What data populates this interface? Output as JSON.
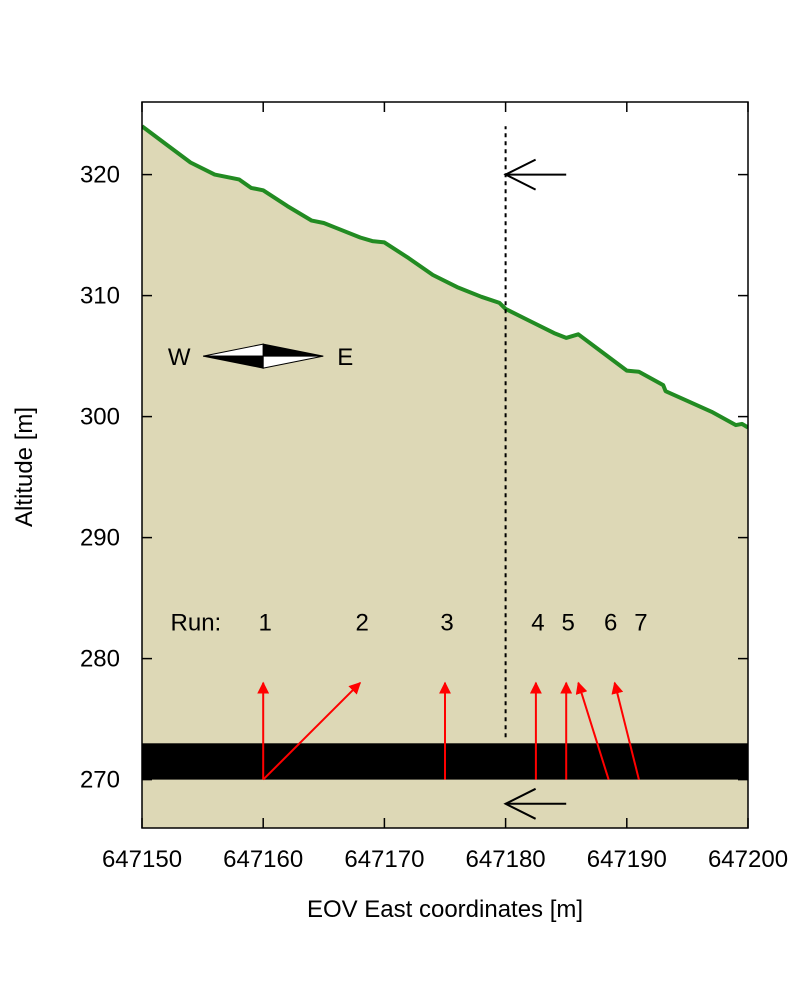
{
  "chart_data": {
    "type": "area",
    "title": "",
    "xlabel": "EOV East coordinates [m]",
    "ylabel": "Altitude [m]",
    "xlim": [
      647150,
      647200
    ],
    "ylim": [
      266,
      326
    ],
    "x_ticks": [
      647150,
      647160,
      647170,
      647180,
      647190,
      647200
    ],
    "y_ticks": [
      270,
      280,
      290,
      300,
      310,
      320
    ],
    "grid": false,
    "colors": {
      "surface_line": "#228b22",
      "fill": "#ddd8b6",
      "layer": "#000000",
      "run_arrows": "#ff0000",
      "section_arrows": "#000000"
    },
    "surface": {
      "x": [
        647150,
        647152,
        647154,
        647156,
        647158,
        647159,
        647160,
        647162,
        647164,
        647165,
        647166,
        647168,
        647169,
        647170,
        647172,
        647174,
        647176,
        647178,
        647179.5,
        647180,
        647182,
        647184,
        647185,
        647186,
        647188,
        647190,
        647191,
        647193,
        647193.2,
        647195,
        647197,
        647199,
        647199.5,
        647200
      ],
      "y": [
        324,
        322.5,
        321,
        320,
        319.6,
        318.9,
        318.7,
        317.4,
        316.2,
        316,
        315.6,
        314.8,
        314.5,
        314.4,
        313.1,
        311.7,
        310.7,
        309.9,
        309.4,
        308.9,
        307.9,
        306.9,
        306.5,
        306.8,
        305.3,
        303.8,
        303.7,
        302.6,
        302.1,
        301.3,
        300.4,
        299.3,
        299.4,
        299.1
      ]
    },
    "layer": {
      "x": [
        647150,
        647200
      ],
      "y_bottom": 270,
      "y_top": 273
    },
    "section_line_x": 647180,
    "section_line_y": [
      273.5,
      324
    ],
    "section_arrows": [
      {
        "x0": 647185,
        "x1": 647180,
        "y": 320
      },
      {
        "x0": 647185,
        "x1": 647180,
        "y": 268
      }
    ],
    "runs_label": "Run:",
    "runs_label_pos": {
      "x": 647154.5,
      "y": 283
    },
    "runs": [
      {
        "label": "1",
        "label_x": 647160,
        "x0": 647160,
        "y0": 270,
        "x1": 647160,
        "y1": 278
      },
      {
        "label": "2",
        "label_x": 647168,
        "x0": 647160,
        "y0": 270,
        "x1": 647168,
        "y1": 278
      },
      {
        "label": "3",
        "label_x": 647175,
        "x0": 647175,
        "y0": 270,
        "x1": 647175,
        "y1": 278
      },
      {
        "label": "4",
        "label_x": 647182.5,
        "x0": 647182.5,
        "y0": 270,
        "x1": 647182.5,
        "y1": 278
      },
      {
        "label": "5",
        "label_x": 647185,
        "x0": 647185,
        "y0": 270,
        "x1": 647185,
        "y1": 278
      },
      {
        "label": "6",
        "label_x": 647188.5,
        "x0": 647188.5,
        "y0": 270,
        "x1": 647186,
        "y1": 278
      },
      {
        "label": "7",
        "label_x": 647191,
        "x0": 647191,
        "y0": 270,
        "x1": 647189,
        "y1": 278
      }
    ],
    "compass": {
      "west_label": "W",
      "east_label": "E",
      "center_x": 647160,
      "center_y": 305
    }
  }
}
